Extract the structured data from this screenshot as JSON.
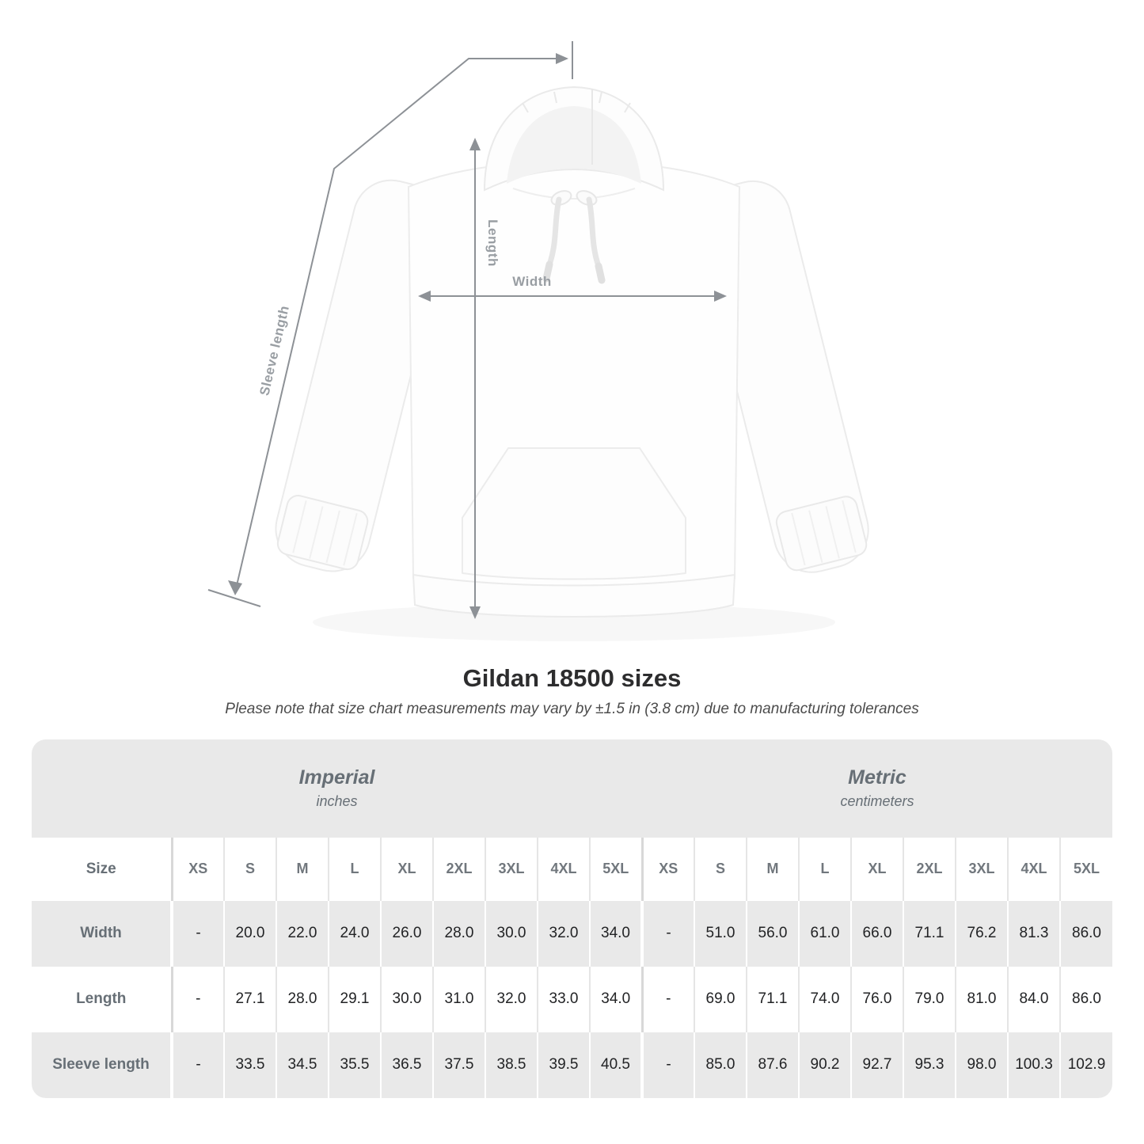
{
  "page": {
    "title": "Gildan 18500 sizes",
    "subtitle": "Please note that size chart measurements may vary by ±1.5 in (3.8 cm) due to manufacturing tolerances"
  },
  "diagram": {
    "labels": {
      "width": "Width",
      "length": "Length",
      "sleeve": "Sleeve length"
    },
    "line_color": "#8d9196",
    "label_color": "#999ea3"
  },
  "table": {
    "size_label": "Size",
    "sizes": [
      "XS",
      "S",
      "M",
      "L",
      "XL",
      "2XL",
      "3XL",
      "4XL",
      "5XL"
    ],
    "sections": [
      {
        "title": "Imperial",
        "unit": "inches"
      },
      {
        "title": "Metric",
        "unit": "centimeters"
      }
    ],
    "rows": [
      {
        "label": "Width",
        "imperial": [
          "-",
          "20.0",
          "22.0",
          "24.0",
          "26.0",
          "28.0",
          "30.0",
          "32.0",
          "34.0"
        ],
        "metric": [
          "-",
          "51.0",
          "56.0",
          "61.0",
          "66.0",
          "71.1",
          "76.2",
          "81.3",
          "86.0"
        ]
      },
      {
        "label": "Length",
        "imperial": [
          "-",
          "27.1",
          "28.0",
          "29.1",
          "30.0",
          "31.0",
          "32.0",
          "33.0",
          "34.0"
        ],
        "metric": [
          "-",
          "69.0",
          "71.1",
          "74.0",
          "76.0",
          "79.0",
          "81.0",
          "84.0",
          "86.0"
        ]
      },
      {
        "label": "Sleeve length",
        "imperial": [
          "-",
          "33.5",
          "34.5",
          "35.5",
          "36.5",
          "37.5",
          "38.5",
          "39.5",
          "40.5"
        ],
        "metric": [
          "-",
          "85.0",
          "87.6",
          "90.2",
          "92.7",
          "95.3",
          "98.0",
          "100.3",
          "102.9"
        ]
      }
    ],
    "colors": {
      "band_bg": "#e9e9e9",
      "alt_row_bg": "#e9e9e9",
      "header_text": "#676f76",
      "value_text": "#222325"
    }
  }
}
